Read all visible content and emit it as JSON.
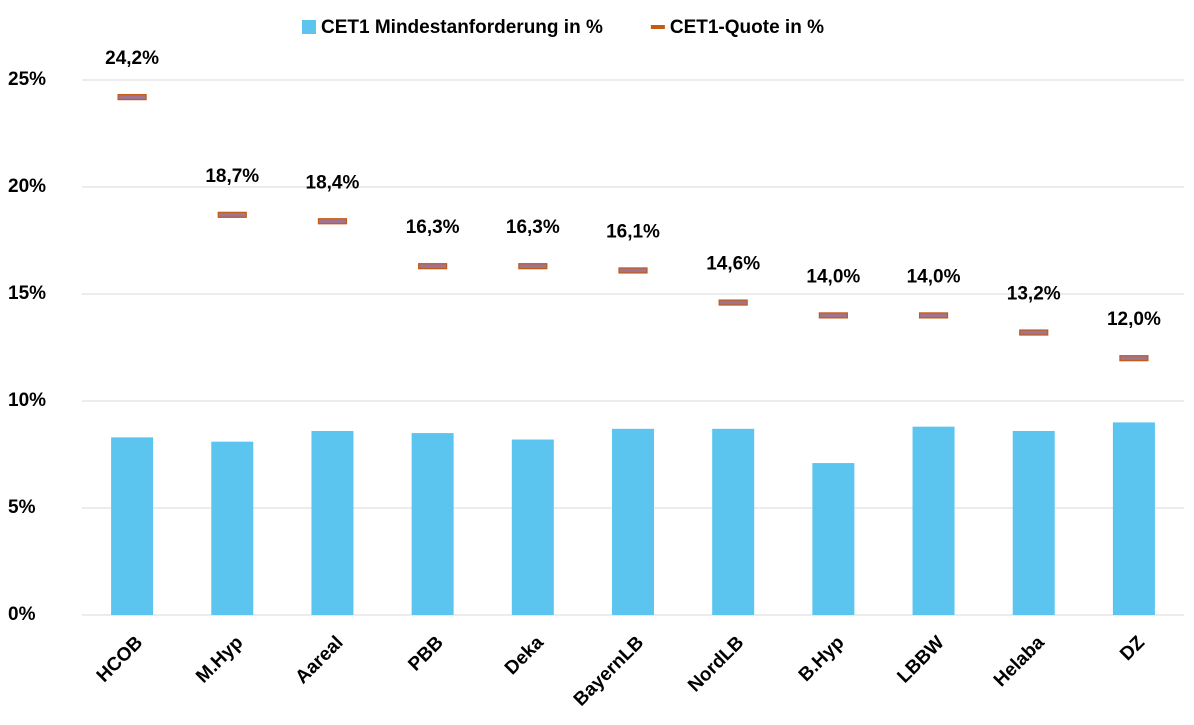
{
  "chart_data": {
    "type": "bar",
    "categories": [
      "HCOB",
      "M.Hyp",
      "Aareal",
      "PBB",
      "Deka",
      "BayernLB",
      "NordLB",
      "B.Hyp",
      "LBBW",
      "Helaba",
      "DZ"
    ],
    "series": [
      {
        "name": "CET1 Mindestanforderung in %",
        "color": "#5bc5f0",
        "mark": "bar",
        "values": [
          8.3,
          8.1,
          8.6,
          8.5,
          8.2,
          8.7,
          8.7,
          7.1,
          8.8,
          8.6,
          9.0
        ]
      },
      {
        "name": "CET1-Quote in %",
        "color": "#c55a11",
        "mark": "dash",
        "values": [
          24.2,
          18.7,
          18.4,
          16.3,
          16.3,
          16.1,
          14.6,
          14.0,
          14.0,
          13.2,
          12.0
        ],
        "value_labels": [
          "24,2%",
          "18,7%",
          "18,4%",
          "16,3%",
          "16,3%",
          "16,1%",
          "14,6%",
          "14,0%",
          "14,0%",
          "13,2%",
          "12,0%"
        ]
      }
    ],
    "ylim": [
      0,
      25
    ],
    "yticks": [
      {
        "value": 0,
        "label": "0%"
      },
      {
        "value": 5,
        "label": "5%"
      },
      {
        "value": 10,
        "label": "10%"
      },
      {
        "value": 15,
        "label": "15%"
      },
      {
        "value": 20,
        "label": "20%"
      },
      {
        "value": 25,
        "label": "25%"
      }
    ],
    "grid": true
  }
}
